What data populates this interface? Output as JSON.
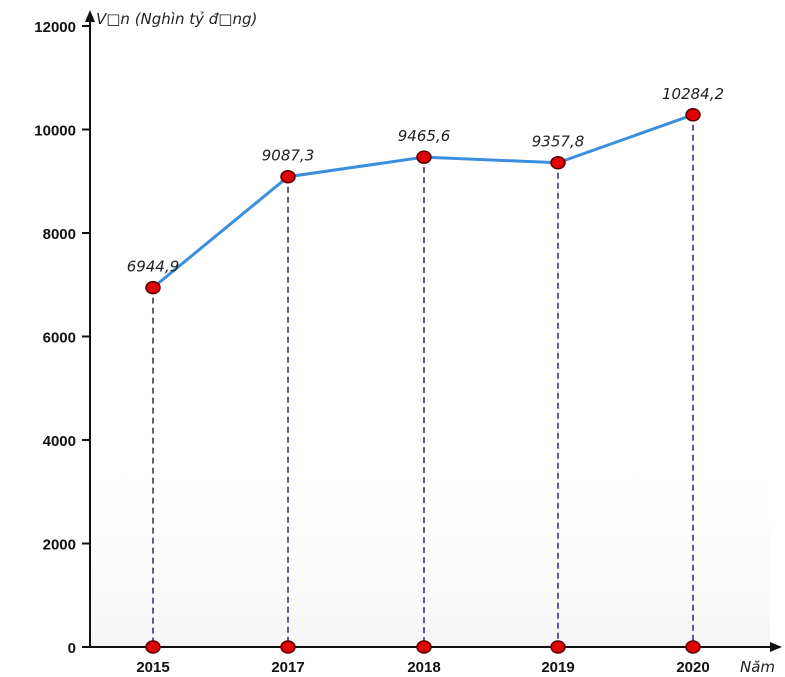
{
  "chart_data": {
    "type": "line",
    "ylabel": "V□n  (Nghìn tỷ đ□ng)",
    "xlabel": "Năm",
    "categories": [
      "2015",
      "2017",
      "2018",
      "2019",
      "2020"
    ],
    "values": [
      6944.9,
      9087.3,
      9465.6,
      9357.8,
      10284.2
    ],
    "value_labels": [
      "6944,9",
      "9087,3",
      "9465,6",
      "9357,8",
      "10284,2"
    ],
    "y_ticks": [
      0,
      2000,
      4000,
      6000,
      8000,
      10000,
      12000
    ],
    "ylim": [
      0,
      12000
    ],
    "grid": false,
    "colors": {
      "line": "#3b8fde",
      "marker": "#e00000",
      "marker_stroke": "#5a0000",
      "dropline": "#1a1a6e",
      "axis": "#111111"
    }
  }
}
